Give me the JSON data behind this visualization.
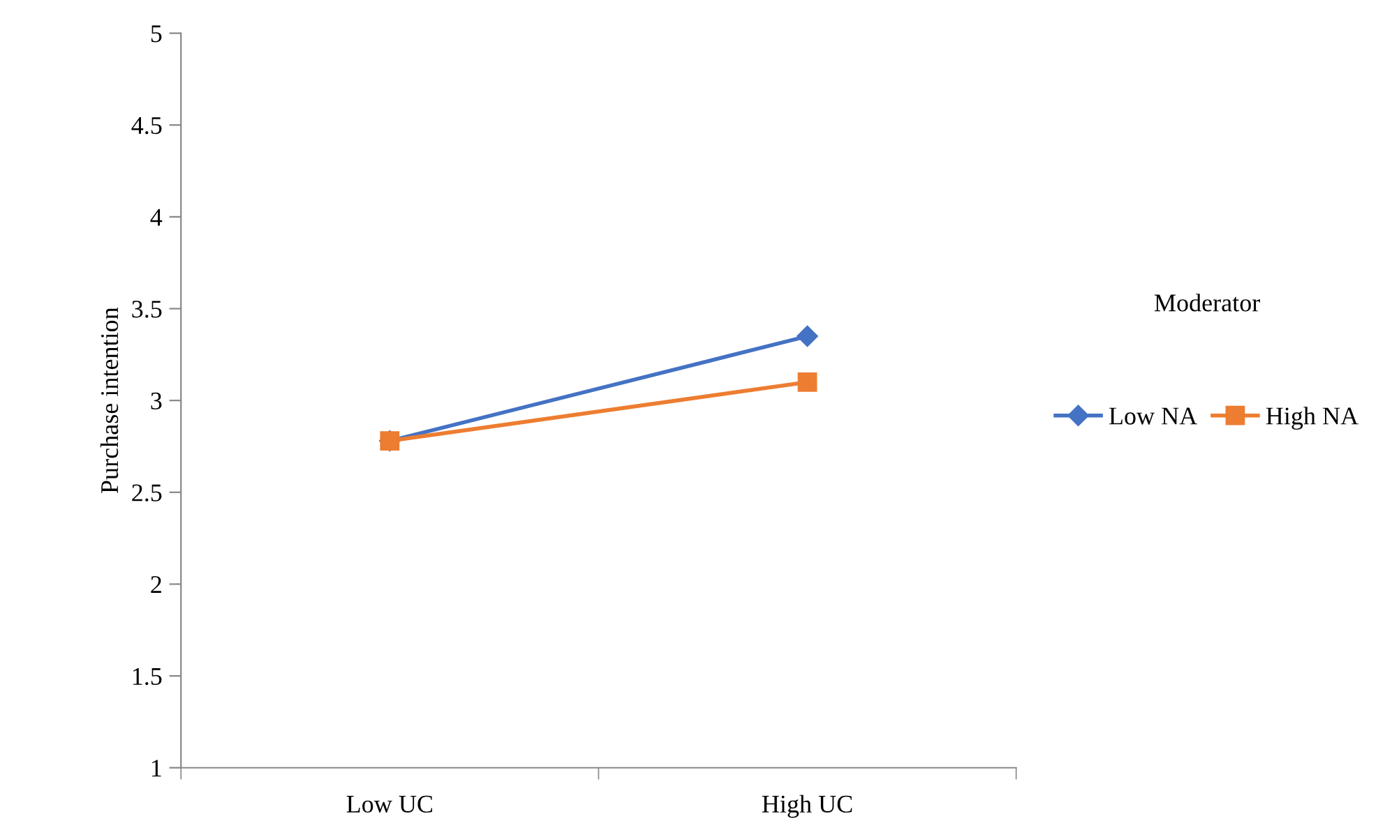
{
  "chart_data": {
    "type": "line",
    "ylabel": "Purchase intention",
    "legend_title": "Moderator",
    "categories": [
      "Low UC",
      "High UC"
    ],
    "series": [
      {
        "name": "Low NA",
        "color": "#4472c4",
        "values": [
          2.78,
          3.35
        ],
        "marker": "diamond"
      },
      {
        "name": "High NA",
        "color": "#ed7d31",
        "values": [
          2.78,
          3.1
        ],
        "marker": "square"
      }
    ],
    "ylim": [
      1,
      5
    ],
    "yticks": [
      1,
      1.5,
      2,
      2.5,
      3,
      3.5,
      4,
      4.5,
      5
    ],
    "grid": false,
    "legend": "right",
    "line_style": "solid"
  }
}
